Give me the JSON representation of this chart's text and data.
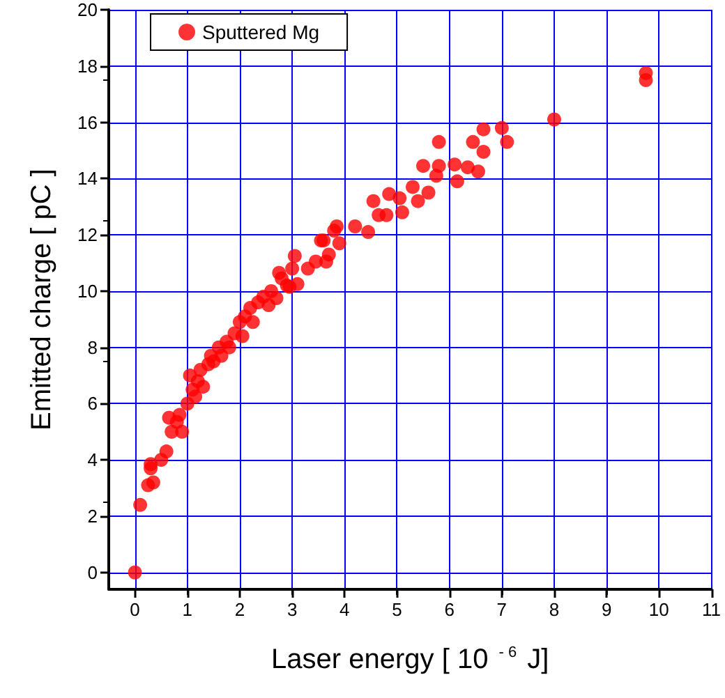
{
  "chart_data": {
    "type": "scatter",
    "xlabel": "Laser energy [ 10 $^{- 6}$ J]",
    "ylabel": "Emitted charge [ pC ]",
    "xlim": [
      -0.5,
      11
    ],
    "xticks": [
      0,
      1,
      2,
      3,
      4,
      5,
      6,
      7,
      8,
      9,
      10,
      11
    ],
    "ylim": [
      -0.6,
      20
    ],
    "yticks": [
      0,
      2,
      4,
      6,
      8,
      10,
      12,
      14,
      16,
      18,
      20
    ],
    "grid": true,
    "legend": "top left",
    "marker": "circle",
    "series": [
      {
        "name": "Sputtered Mg",
        "color": "#ff0000",
        "x": [
          0,
          0.1,
          0.25,
          0.3,
          0.35,
          0.3,
          0.5,
          0.6,
          0.65,
          0.7,
          0.8,
          0.85,
          0.9,
          1.0,
          1.05,
          1.1,
          1.15,
          1.2,
          1.25,
          1.3,
          1.4,
          1.45,
          1.5,
          1.6,
          1.65,
          1.75,
          1.8,
          1.9,
          2.0,
          2.05,
          2.1,
          2.2,
          2.25,
          2.35,
          2.45,
          2.55,
          2.6,
          2.7,
          2.75,
          2.8,
          2.9,
          2.95,
          3.0,
          3.05,
          3.1,
          3.3,
          3.45,
          3.55,
          3.6,
          3.65,
          3.7,
          3.8,
          3.85,
          3.9,
          4.2,
          4.45,
          4.55,
          4.65,
          4.8,
          4.85,
          5.05,
          5.1,
          5.3,
          5.4,
          5.5,
          5.6,
          5.75,
          5.8,
          5.8,
          6.1,
          6.15,
          6.35,
          6.45,
          6.55,
          6.65,
          6.65,
          7.0,
          7.1,
          8.0,
          9.75,
          9.75
        ],
        "values": [
          0,
          2.4,
          3.1,
          3.7,
          3.2,
          3.85,
          4.0,
          4.3,
          5.5,
          5.0,
          5.35,
          5.6,
          5.0,
          6.0,
          7.0,
          6.5,
          6.25,
          6.8,
          7.2,
          6.6,
          7.4,
          7.7,
          7.5,
          8.0,
          7.7,
          8.2,
          8.0,
          8.5,
          8.9,
          8.4,
          9.1,
          9.4,
          8.9,
          9.6,
          9.8,
          9.5,
          10.0,
          9.75,
          10.65,
          10.45,
          10.2,
          10.15,
          10.8,
          11.25,
          10.25,
          10.8,
          11.05,
          11.8,
          11.8,
          11.05,
          11.3,
          12.15,
          12.3,
          11.7,
          12.3,
          12.1,
          13.2,
          12.7,
          12.7,
          13.45,
          13.3,
          12.8,
          13.7,
          13.2,
          14.45,
          13.5,
          14.1,
          14.45,
          15.3,
          14.5,
          13.9,
          14.4,
          15.3,
          14.25,
          15.75,
          14.95,
          15.8,
          15.3,
          16.1,
          17.5,
          17.75
        ]
      }
    ]
  }
}
